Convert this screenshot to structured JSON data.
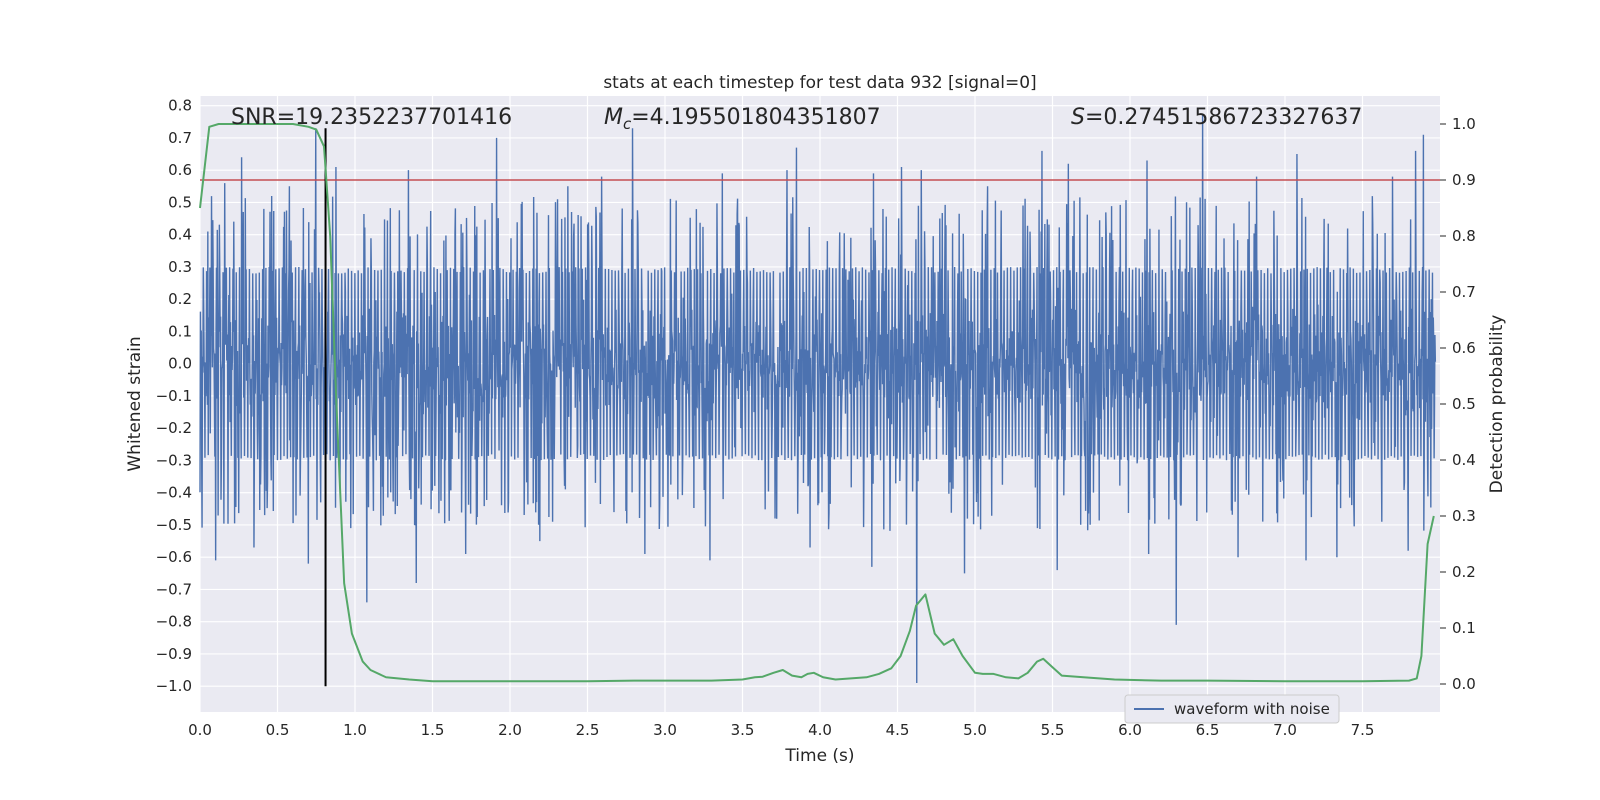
{
  "chart_data": {
    "type": "line",
    "title": "stats at each timestep for test data 932 [signal=0]",
    "xlabel": "Time (s)",
    "ylabel": "Whitened strain",
    "y2label": "Detection probability",
    "xlim": [
      0.0,
      8.0
    ],
    "ylim": [
      -1.08,
      0.83
    ],
    "y2lim": [
      -0.05,
      1.05
    ],
    "x_ticks": [
      0.0,
      0.5,
      1.0,
      1.5,
      2.0,
      2.5,
      3.0,
      3.5,
      4.0,
      4.5,
      5.0,
      5.5,
      6.0,
      6.5,
      7.0,
      7.5
    ],
    "x_tick_labels": [
      "0.0",
      "0.5",
      "1.0",
      "1.5",
      "2.0",
      "2.5",
      "3.0",
      "3.5",
      "4.0",
      "4.5",
      "5.0",
      "5.5",
      "6.0",
      "6.5",
      "7.0",
      "7.5"
    ],
    "y_ticks": [
      0.8,
      0.7,
      0.6,
      0.5,
      0.4,
      0.3,
      0.2,
      0.1,
      0.0,
      -0.1,
      -0.2,
      -0.3,
      -0.4,
      -0.5,
      -0.6,
      -0.7,
      -0.8,
      -0.9,
      -1.0
    ],
    "y_tick_labels": [
      "0.8",
      "0.7",
      "0.6",
      "0.5",
      "0.4",
      "0.3",
      "0.2",
      "0.1",
      "0.0",
      "−0.1",
      "−0.2",
      "−0.3",
      "−0.4",
      "−0.5",
      "−0.6",
      "−0.7",
      "−0.8",
      "−0.9",
      "−1.0"
    ],
    "y2_ticks": [
      1.0,
      0.9,
      0.8,
      0.7,
      0.6,
      0.5,
      0.4,
      0.3,
      0.2,
      0.1,
      0.0
    ],
    "y2_tick_labels": [
      "1.0",
      "0.9",
      "0.8",
      "0.7",
      "0.6",
      "0.5",
      "0.4",
      "0.3",
      "0.2",
      "0.1",
      "0.0"
    ],
    "grid": true,
    "legend": {
      "placement": "lower-right",
      "entries": [
        "waveform with noise"
      ]
    },
    "annotations": {
      "snr": "SNR=19.2352237701416",
      "mc_symbol": "M",
      "mc_sub": "c",
      "mc_value": "=4.195501804351807",
      "s_symbol": "S",
      "s_value": "=0.27451586723327637"
    },
    "threshold_prob": 0.9,
    "vline_x": 0.81,
    "vline_range": [
      -1.0,
      0.73
    ],
    "colors": {
      "waveform": "#4c72b0",
      "probability": "#55a868",
      "threshold": "#c44e52",
      "vline": "#000000",
      "background": "#eaeaf2",
      "grid": "#ffffff"
    },
    "series": [
      {
        "name": "waveform with noise",
        "axis": "left",
        "style": "dense-noise",
        "band_typical": [
          -0.28,
          0.28
        ],
        "peaks_up": [
          [
            0.05,
            0.41
          ],
          [
            0.16,
            0.56
          ],
          [
            0.27,
            0.64
          ],
          [
            0.58,
            0.55
          ],
          [
            0.75,
            0.73
          ],
          [
            0.88,
            0.61
          ],
          [
            1.08,
            0.62
          ],
          [
            1.35,
            0.6
          ],
          [
            1.92,
            0.7
          ],
          [
            2.38,
            0.55
          ],
          [
            2.6,
            0.58
          ],
          [
            2.8,
            0.73
          ],
          [
            3.38,
            0.59
          ],
          [
            3.8,
            0.6
          ],
          [
            3.86,
            0.67
          ],
          [
            4.36,
            0.59
          ],
          [
            4.54,
            0.61
          ],
          [
            4.67,
            0.6
          ],
          [
            5.1,
            0.55
          ],
          [
            5.45,
            0.66
          ],
          [
            5.62,
            0.62
          ],
          [
            6.13,
            0.63
          ],
          [
            6.49,
            0.77
          ],
          [
            6.84,
            0.58
          ],
          [
            7.1,
            0.65
          ],
          [
            7.72,
            0.58
          ],
          [
            7.87,
            0.66
          ],
          [
            7.92,
            0.71
          ]
        ],
        "peaks_down": [
          [
            0.1,
            -0.61
          ],
          [
            0.35,
            -0.57
          ],
          [
            0.7,
            -0.62
          ],
          [
            1.08,
            -0.74
          ],
          [
            1.4,
            -0.68
          ],
          [
            1.72,
            -0.59
          ],
          [
            2.2,
            -0.55
          ],
          [
            2.88,
            -0.59
          ],
          [
            3.3,
            -0.61
          ],
          [
            3.95,
            -0.57
          ],
          [
            4.35,
            -0.63
          ],
          [
            4.64,
            -0.99
          ],
          [
            4.95,
            -0.65
          ],
          [
            5.55,
            -0.64
          ],
          [
            6.14,
            -0.59
          ],
          [
            6.32,
            -0.81
          ],
          [
            6.72,
            -0.6
          ],
          [
            7.16,
            -0.61
          ],
          [
            7.36,
            -0.6
          ],
          [
            7.82,
            -0.58
          ]
        ]
      },
      {
        "name": "",
        "axis": "right",
        "x": [
          0.0,
          0.06,
          0.12,
          0.2,
          0.3,
          0.4,
          0.5,
          0.6,
          0.7,
          0.75,
          0.8,
          0.84,
          0.88,
          0.93,
          0.98,
          1.05,
          1.1,
          1.2,
          1.35,
          1.5,
          1.7,
          2.0,
          2.5,
          2.8,
          3.0,
          3.3,
          3.5,
          3.58,
          3.63,
          3.7,
          3.76,
          3.82,
          3.88,
          3.92,
          3.96,
          4.02,
          4.1,
          4.2,
          4.3,
          4.38,
          4.46,
          4.52,
          4.58,
          4.62,
          4.68,
          4.74,
          4.8,
          4.86,
          4.92,
          5.0,
          5.05,
          5.12,
          5.2,
          5.28,
          5.34,
          5.4,
          5.44,
          5.5,
          5.56,
          5.7,
          5.9,
          6.2,
          6.5,
          7.0,
          7.5,
          7.8,
          7.85,
          7.88,
          7.92,
          7.96
        ],
        "y": [
          0.85,
          0.995,
          1.0,
          1.0,
          1.0,
          1.0,
          1.0,
          1.0,
          0.995,
          0.99,
          0.96,
          0.8,
          0.5,
          0.18,
          0.09,
          0.04,
          0.025,
          0.012,
          0.008,
          0.005,
          0.005,
          0.005,
          0.005,
          0.006,
          0.006,
          0.006,
          0.008,
          0.012,
          0.013,
          0.02,
          0.025,
          0.015,
          0.012,
          0.018,
          0.02,
          0.012,
          0.008,
          0.01,
          0.012,
          0.018,
          0.028,
          0.05,
          0.095,
          0.14,
          0.16,
          0.09,
          0.07,
          0.08,
          0.05,
          0.02,
          0.018,
          0.018,
          0.012,
          0.01,
          0.02,
          0.04,
          0.045,
          0.03,
          0.015,
          0.012,
          0.008,
          0.006,
          0.006,
          0.005,
          0.005,
          0.006,
          0.01,
          0.05,
          0.25,
          0.3
        ]
      }
    ]
  }
}
